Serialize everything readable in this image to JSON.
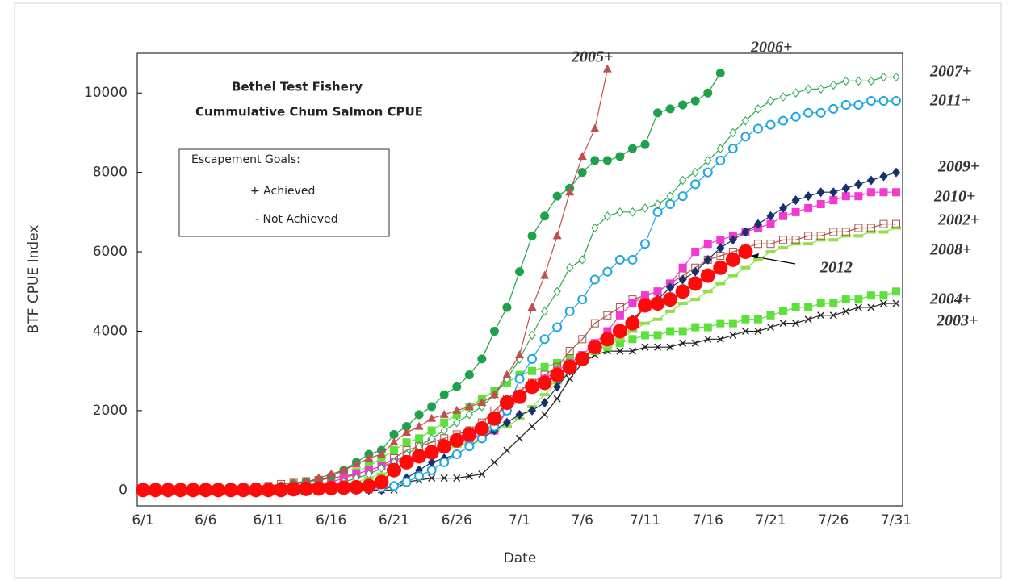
{
  "chart_data": {
    "type": "line",
    "title": "Bethel Test Fishery",
    "subtitle": "Cummulative Chum Salmon CPUE",
    "x_label": "Date",
    "y_label": "BTF CPUE Index",
    "legend_box": {
      "title": "Escapement  Goals:",
      "items": [
        "+ Achieved",
        "- Not Achieved"
      ]
    },
    "grid": false,
    "ylim": [
      -400,
      11000
    ],
    "yticks": [
      0,
      2000,
      4000,
      6000,
      8000,
      10000
    ],
    "categories": [
      "6/1",
      null,
      null,
      null,
      null,
      "6/6",
      null,
      null,
      null,
      null,
      "6/11",
      null,
      null,
      null,
      null,
      "6/16",
      null,
      null,
      null,
      null,
      "6/21",
      null,
      null,
      null,
      null,
      "6/26",
      null,
      null,
      null,
      null,
      "7/1",
      null,
      null,
      null,
      null,
      "7/6",
      null,
      null,
      null,
      null,
      "7/11",
      null,
      null,
      null,
      null,
      "7/16",
      null,
      null,
      null,
      null,
      "7/21",
      null,
      null,
      null,
      null,
      "7/26",
      null,
      null,
      null,
      null,
      "7/31"
    ],
    "series": [
      {
        "name": "2005+",
        "color": "#c0504d",
        "marker": "triangle",
        "values": [
          0,
          0,
          0,
          0,
          0,
          0,
          0,
          20,
          40,
          60,
          80,
          100,
          150,
          200,
          300,
          400,
          500,
          650,
          800,
          900,
          1200,
          1450,
          1600,
          1800,
          1900,
          2000,
          2100,
          2200,
          2400,
          2900,
          3400,
          4600,
          5400,
          6400,
          7500,
          8400,
          9100,
          10600,
          null,
          null,
          null,
          null,
          null,
          null,
          null,
          null,
          null,
          null,
          null,
          null,
          null,
          null,
          null,
          null,
          null,
          null,
          null,
          null,
          null,
          null,
          null
        ]
      },
      {
        "name": "2006+",
        "color": "#1fa04a",
        "marker": "circle",
        "values": [
          0,
          0,
          0,
          0,
          0,
          0,
          0,
          20,
          40,
          60,
          80,
          100,
          150,
          200,
          250,
          350,
          500,
          700,
          900,
          1000,
          1400,
          1600,
          1900,
          2100,
          2400,
          2600,
          2900,
          3300,
          4000,
          4600,
          5500,
          6400,
          6900,
          7400,
          7600,
          8000,
          8300,
          8300,
          8400,
          8600,
          8700,
          9500,
          9600,
          9700,
          9800,
          10000,
          10500,
          null,
          null,
          null,
          null,
          null,
          null,
          null,
          null,
          null,
          null,
          null,
          null,
          null,
          null
        ]
      },
      {
        "name": "2007+",
        "color": "#2aa84a",
        "marker": "open-diamond",
        "values": [
          0,
          0,
          0,
          0,
          0,
          0,
          0,
          0,
          0,
          0,
          20,
          40,
          60,
          80,
          100,
          150,
          200,
          300,
          400,
          550,
          700,
          900,
          1100,
          1300,
          1500,
          1700,
          1900,
          2100,
          2400,
          2800,
          3300,
          3900,
          4500,
          5000,
          5600,
          5800,
          6600,
          6900,
          7000,
          7000,
          7100,
          7200,
          7400,
          7800,
          8000,
          8300,
          8600,
          9000,
          9300,
          9600,
          9800,
          9900,
          10000,
          10100,
          10100,
          10200,
          10300,
          10300,
          10300,
          10400,
          10400
        ]
      },
      {
        "name": "2011+",
        "color": "#1fa6e0",
        "marker": "open-circle",
        "values": [
          0,
          0,
          0,
          0,
          0,
          0,
          0,
          0,
          0,
          0,
          0,
          0,
          0,
          0,
          0,
          0,
          0,
          20,
          40,
          60,
          100,
          200,
          350,
          500,
          700,
          900,
          1100,
          1300,
          1600,
          2000,
          2800,
          3300,
          3800,
          4100,
          4500,
          4800,
          5300,
          5500,
          5800,
          5800,
          6200,
          7000,
          7200,
          7400,
          7700,
          8000,
          8300,
          8600,
          8900,
          9100,
          9200,
          9300,
          9400,
          9500,
          9500,
          9600,
          9700,
          9700,
          9800,
          9800,
          9800
        ]
      },
      {
        "name": "2009+",
        "color": "#17306b",
        "marker": "diamond",
        "values": [
          0,
          0,
          0,
          0,
          0,
          0,
          0,
          0,
          0,
          0,
          0,
          0,
          0,
          0,
          0,
          0,
          0,
          0,
          0,
          0,
          100,
          300,
          500,
          700,
          800,
          900,
          1100,
          1300,
          1500,
          1700,
          1900,
          2000,
          2200,
          2600,
          3000,
          3300,
          3600,
          3800,
          4000,
          4300,
          4600,
          4800,
          5100,
          5300,
          5500,
          5800,
          6100,
          6300,
          6500,
          6700,
          6900,
          7100,
          7300,
          7400,
          7500,
          7500,
          7600,
          7700,
          7800,
          7900,
          8000
        ]
      },
      {
        "name": "2010+",
        "color": "#f23ad0",
        "marker": "square",
        "values": [
          0,
          0,
          0,
          0,
          0,
          0,
          0,
          10,
          20,
          40,
          60,
          80,
          100,
          130,
          160,
          200,
          300,
          400,
          500,
          600,
          700,
          800,
          900,
          1000,
          1100,
          1200,
          1300,
          1400,
          1500,
          2000,
          2300,
          2600,
          2800,
          3000,
          3200,
          3400,
          3700,
          4000,
          4400,
          4700,
          4900,
          5000,
          5200,
          5600,
          6000,
          6200,
          6300,
          6400,
          6500,
          6600,
          6700,
          6900,
          7000,
          7100,
          7200,
          7300,
          7400,
          7400,
          7500,
          7500,
          7500
        ]
      },
      {
        "name": "2002+",
        "color": "#b0504a",
        "marker": "open-square",
        "values": [
          0,
          0,
          0,
          0,
          0,
          0,
          20,
          40,
          60,
          80,
          100,
          150,
          180,
          220,
          250,
          300,
          350,
          400,
          500,
          600,
          800,
          1000,
          1100,
          1200,
          1300,
          1400,
          1500,
          1700,
          2000,
          2300,
          2500,
          2700,
          2900,
          3100,
          3500,
          3800,
          4200,
          4400,
          4600,
          4800,
          4900,
          5000,
          5200,
          5400,
          5600,
          5800,
          5900,
          6000,
          6100,
          6200,
          6200,
          6300,
          6300,
          6400,
          6400,
          6500,
          6500,
          6600,
          6600,
          6700,
          6700
        ]
      },
      {
        "name": "2008+",
        "color": "#8fe04a",
        "marker": "dash",
        "values": [
          0,
          0,
          0,
          0,
          0,
          0,
          0,
          0,
          0,
          0,
          0,
          0,
          0,
          0,
          20,
          50,
          100,
          200,
          300,
          400,
          500,
          700,
          800,
          900,
          1000,
          1100,
          1200,
          1300,
          1500,
          1600,
          1800,
          2100,
          2400,
          2700,
          3000,
          3300,
          3500,
          3600,
          3800,
          4000,
          4200,
          4300,
          4500,
          4700,
          4800,
          5000,
          5200,
          5400,
          5600,
          5800,
          6000,
          6100,
          6200,
          6200,
          6300,
          6300,
          6400,
          6400,
          6500,
          6500,
          6600
        ]
      },
      {
        "name": "2004+",
        "color": "#5de03a",
        "marker": "square",
        "values": [
          0,
          0,
          0,
          0,
          0,
          0,
          0,
          0,
          0,
          0,
          0,
          0,
          20,
          50,
          100,
          200,
          300,
          450,
          600,
          800,
          1000,
          1200,
          1300,
          1500,
          1700,
          1900,
          2100,
          2300,
          2500,
          2700,
          2900,
          3000,
          3100,
          3200,
          3300,
          3400,
          3500,
          3600,
          3700,
          3800,
          3900,
          3900,
          4000,
          4000,
          4100,
          4100,
          4200,
          4200,
          4300,
          4300,
          4400,
          4500,
          4600,
          4600,
          4700,
          4700,
          4800,
          4800,
          4900,
          4900,
          5000
        ]
      },
      {
        "name": "2003+",
        "color": "#222222",
        "marker": "x",
        "values": [
          0,
          0,
          0,
          0,
          0,
          0,
          0,
          0,
          0,
          0,
          0,
          0,
          0,
          0,
          0,
          0,
          0,
          0,
          0,
          0,
          0,
          200,
          250,
          300,
          300,
          300,
          350,
          400,
          700,
          1000,
          1300,
          1600,
          1900,
          2300,
          2800,
          3200,
          3400,
          3500,
          3500,
          3500,
          3600,
          3600,
          3600,
          3700,
          3700,
          3800,
          3800,
          3900,
          4000,
          4000,
          4100,
          4200,
          4200,
          4300,
          4400,
          4400,
          4500,
          4600,
          4600,
          4700,
          4700
        ]
      },
      {
        "name": "2012",
        "color": "#ff0a0a",
        "marker": "big-circle",
        "values": [
          0,
          0,
          0,
          0,
          0,
          0,
          0,
          0,
          0,
          0,
          0,
          0,
          20,
          30,
          40,
          50,
          60,
          70,
          100,
          200,
          500,
          700,
          850,
          950,
          1100,
          1250,
          1400,
          1550,
          1800,
          2200,
          2350,
          2600,
          2700,
          2900,
          3100,
          3300,
          3600,
          3800,
          4000,
          4200,
          4650,
          4700,
          4800,
          5000,
          5200,
          5400,
          5600,
          5800,
          6000,
          null,
          null,
          null,
          null,
          null,
          null,
          null,
          null,
          null,
          null,
          null,
          null
        ]
      }
    ]
  }
}
